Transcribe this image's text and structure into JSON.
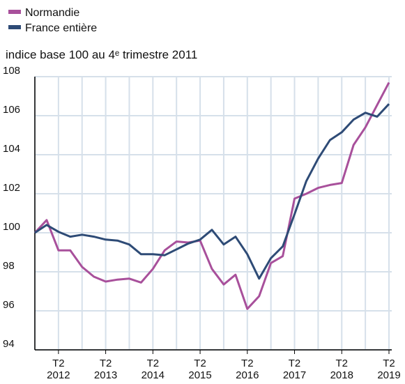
{
  "chart_data": {
    "type": "line",
    "subtitle": "indice base 100 au 4ᵉ trimestre 2011",
    "categories": [
      null,
      null,
      "T2 2012",
      null,
      null,
      null,
      "T2 2013",
      null,
      null,
      null,
      "T2 2014",
      null,
      null,
      null,
      "T2 2015",
      null,
      null,
      null,
      "T2 2016",
      null,
      null,
      null,
      "T2 2017",
      null,
      null,
      null,
      "T2 2018",
      null,
      null,
      null,
      "T2 2019"
    ],
    "series": [
      {
        "name": "Normandie",
        "color": "#a8509b",
        "values": [
          100.0,
          100.65,
          99.1,
          99.1,
          98.25,
          97.75,
          97.5,
          97.6,
          97.65,
          97.45,
          98.15,
          99.1,
          99.55,
          99.5,
          99.6,
          98.15,
          97.35,
          97.85,
          96.1,
          96.75,
          98.45,
          98.8,
          101.75,
          102.0,
          102.3,
          102.45,
          102.55,
          104.5,
          105.4,
          106.55,
          107.7
        ]
      },
      {
        "name": "France entière",
        "color": "#2e4b76",
        "values": [
          100.0,
          100.4,
          100.05,
          99.8,
          99.9,
          99.8,
          99.65,
          99.6,
          99.4,
          98.9,
          98.9,
          98.85,
          99.15,
          99.45,
          99.65,
          100.15,
          99.4,
          99.8,
          98.9,
          97.65,
          98.7,
          99.3,
          100.95,
          102.65,
          103.8,
          104.75,
          105.15,
          105.8,
          106.15,
          105.95,
          106.6
        ]
      }
    ],
    "ylim": [
      94,
      108
    ],
    "yticks": [
      94,
      96,
      98,
      100,
      102,
      104,
      106,
      108
    ],
    "grid": true
  }
}
